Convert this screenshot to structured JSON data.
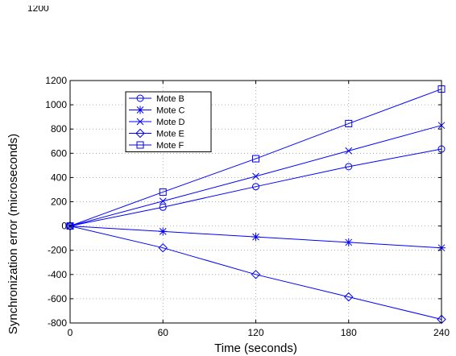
{
  "stray_label": "1200",
  "chart_data": {
    "type": "line",
    "title": "",
    "xlabel": "Time (seconds)",
    "ylabel": "Synchronization error (microseconds)",
    "xlim": [
      0,
      240
    ],
    "ylim": [
      -800,
      1200
    ],
    "xticks": [
      0,
      60,
      120,
      180,
      240
    ],
    "yticks": [
      -800,
      -600,
      -400,
      -200,
      0,
      200,
      400,
      600,
      800,
      1000,
      1200
    ],
    "xtick_labels": [
      "0",
      "60",
      "120",
      "180",
      "240"
    ],
    "ytick_labels": [
      "-800",
      "-600",
      "-400",
      "-200",
      "0",
      "200",
      "400",
      "600",
      "800",
      "1000",
      "1200"
    ],
    "grid": true,
    "grid_style": "dotted",
    "legend_position": "top-left",
    "line_color": "#0000ff",
    "x": [
      0,
      60,
      120,
      180,
      240
    ],
    "series": [
      {
        "name": "Mote B",
        "marker": "circle",
        "values": [
          0,
          155,
          325,
          490,
          635
        ]
      },
      {
        "name": "Mote C",
        "marker": "star",
        "values": [
          0,
          -45,
          -90,
          -135,
          -180
        ]
      },
      {
        "name": "Mote D",
        "marker": "x",
        "values": [
          0,
          205,
          410,
          620,
          830
        ]
      },
      {
        "name": "Mote E",
        "marker": "diamond",
        "values": [
          0,
          -180,
          -400,
          -585,
          -770
        ]
      },
      {
        "name": "Mote F",
        "marker": "square",
        "values": [
          0,
          280,
          555,
          845,
          1130
        ]
      }
    ]
  }
}
